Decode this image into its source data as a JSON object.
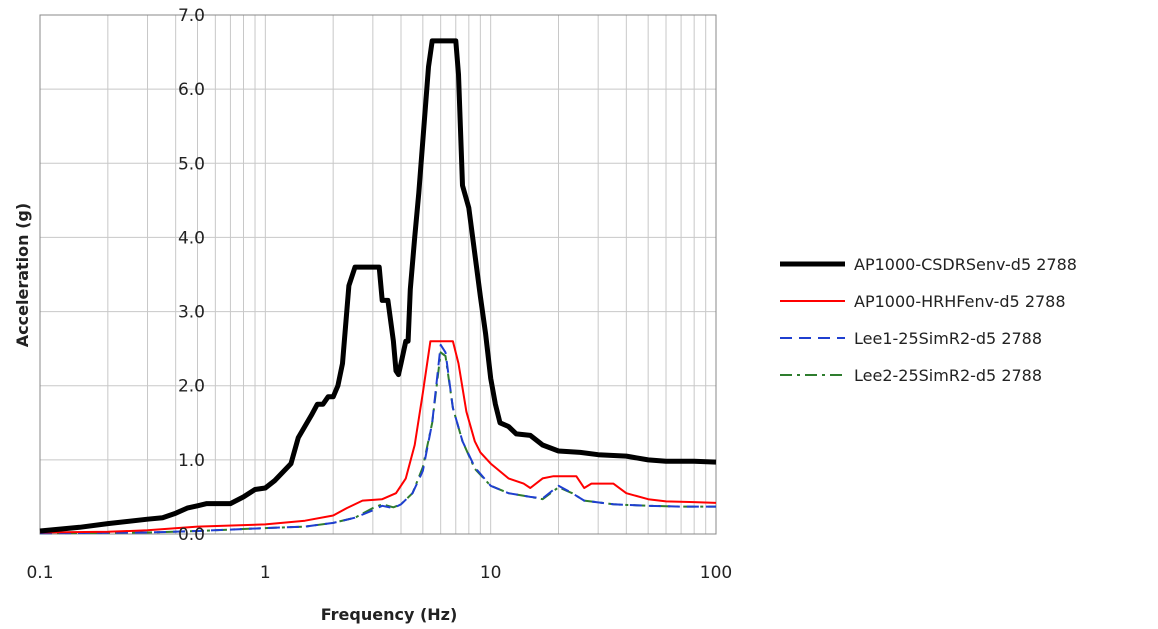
{
  "chart_data": {
    "type": "line",
    "title": "",
    "xlabel": "Frequency (Hz)",
    "ylabel": "Acceleration (g)",
    "xscale": "log",
    "xlim": [
      0.1,
      100
    ],
    "ylim": [
      0,
      7
    ],
    "x_ticks": [
      {
        "value": 0.1,
        "label": "0.1"
      },
      {
        "value": 1,
        "label": "1"
      },
      {
        "value": 10,
        "label": "10"
      },
      {
        "value": 100,
        "label": "100"
      }
    ],
    "y_ticks": [
      {
        "value": 0,
        "label": "0.0"
      },
      {
        "value": 1,
        "label": "1.0"
      },
      {
        "value": 2,
        "label": "2.0"
      },
      {
        "value": 3,
        "label": "3.0"
      },
      {
        "value": 4,
        "label": "4.0"
      },
      {
        "value": 5,
        "label": "5.0"
      },
      {
        "value": 6,
        "label": "6.0"
      },
      {
        "value": 7,
        "label": "7.0"
      }
    ],
    "grid": true,
    "legend_position": "right",
    "series": [
      {
        "name": "AP1000-CSDRSenv-d5 2788",
        "color": "#000000",
        "style": "solid-thick",
        "points": [
          [
            0.1,
            0.04
          ],
          [
            0.15,
            0.09
          ],
          [
            0.2,
            0.14
          ],
          [
            0.3,
            0.2
          ],
          [
            0.35,
            0.22
          ],
          [
            0.4,
            0.28
          ],
          [
            0.45,
            0.35
          ],
          [
            0.5,
            0.38
          ],
          [
            0.55,
            0.41
          ],
          [
            0.6,
            0.41
          ],
          [
            0.7,
            0.41
          ],
          [
            0.8,
            0.5
          ],
          [
            0.9,
            0.6
          ],
          [
            1.0,
            0.62
          ],
          [
            1.1,
            0.72
          ],
          [
            1.3,
            0.95
          ],
          [
            1.4,
            1.3
          ],
          [
            1.6,
            1.6
          ],
          [
            1.7,
            1.75
          ],
          [
            1.8,
            1.75
          ],
          [
            1.9,
            1.85
          ],
          [
            2.0,
            1.85
          ],
          [
            2.1,
            2.0
          ],
          [
            2.2,
            2.3
          ],
          [
            2.35,
            3.35
          ],
          [
            2.5,
            3.6
          ],
          [
            3.0,
            3.6
          ],
          [
            3.2,
            3.6
          ],
          [
            3.3,
            3.15
          ],
          [
            3.5,
            3.15
          ],
          [
            3.7,
            2.6
          ],
          [
            3.8,
            2.2
          ],
          [
            3.9,
            2.15
          ],
          [
            4.0,
            2.3
          ],
          [
            4.2,
            2.6
          ],
          [
            4.3,
            2.6
          ],
          [
            4.4,
            3.3
          ],
          [
            4.6,
            4.0
          ],
          [
            4.8,
            4.6
          ],
          [
            5.0,
            5.3
          ],
          [
            5.3,
            6.3
          ],
          [
            5.5,
            6.65
          ],
          [
            7.0,
            6.65
          ],
          [
            7.2,
            6.2
          ],
          [
            7.5,
            4.7
          ],
          [
            8.0,
            4.4
          ],
          [
            9.0,
            3.2
          ],
          [
            9.5,
            2.7
          ],
          [
            10.0,
            2.1
          ],
          [
            10.5,
            1.75
          ],
          [
            11.0,
            1.5
          ],
          [
            12.0,
            1.45
          ],
          [
            13.0,
            1.35
          ],
          [
            15.0,
            1.33
          ],
          [
            17.0,
            1.2
          ],
          [
            20.0,
            1.12
          ],
          [
            25.0,
            1.1
          ],
          [
            30.0,
            1.07
          ],
          [
            40.0,
            1.05
          ],
          [
            50.0,
            1.0
          ],
          [
            60.0,
            0.98
          ],
          [
            80.0,
            0.98
          ],
          [
            100.0,
            0.97
          ]
        ]
      },
      {
        "name": "AP1000-HRHFenv-d5 2788",
        "color": "#ff0000",
        "style": "solid",
        "points": [
          [
            0.1,
            0.02
          ],
          [
            0.2,
            0.03
          ],
          [
            0.3,
            0.05
          ],
          [
            0.5,
            0.1
          ],
          [
            0.8,
            0.12
          ],
          [
            1.0,
            0.13
          ],
          [
            1.5,
            0.18
          ],
          [
            2.0,
            0.25
          ],
          [
            2.3,
            0.35
          ],
          [
            2.7,
            0.45
          ],
          [
            3.3,
            0.47
          ],
          [
            3.8,
            0.55
          ],
          [
            4.2,
            0.75
          ],
          [
            4.6,
            1.2
          ],
          [
            5.0,
            1.9
          ],
          [
            5.4,
            2.6
          ],
          [
            6.8,
            2.6
          ],
          [
            7.2,
            2.3
          ],
          [
            7.8,
            1.65
          ],
          [
            8.5,
            1.25
          ],
          [
            9.0,
            1.1
          ],
          [
            10.0,
            0.95
          ],
          [
            12.0,
            0.75
          ],
          [
            14.0,
            0.68
          ],
          [
            15.0,
            0.62
          ],
          [
            17.0,
            0.75
          ],
          [
            19.0,
            0.78
          ],
          [
            24.0,
            0.78
          ],
          [
            26.0,
            0.62
          ],
          [
            28.0,
            0.68
          ],
          [
            35.0,
            0.68
          ],
          [
            40.0,
            0.55
          ],
          [
            50.0,
            0.47
          ],
          [
            60.0,
            0.44
          ],
          [
            80.0,
            0.43
          ],
          [
            100.0,
            0.42
          ]
        ]
      },
      {
        "name": "Lee1-25SimR2-d5 2788",
        "color": "#1f3fd0",
        "style": "dashed",
        "points": [
          [
            0.1,
            0.01
          ],
          [
            0.3,
            0.02
          ],
          [
            0.5,
            0.04
          ],
          [
            1.0,
            0.08
          ],
          [
            1.5,
            0.1
          ],
          [
            2.0,
            0.15
          ],
          [
            2.5,
            0.22
          ],
          [
            3.0,
            0.32
          ],
          [
            3.3,
            0.38
          ],
          [
            3.7,
            0.35
          ],
          [
            4.0,
            0.4
          ],
          [
            4.5,
            0.55
          ],
          [
            5.0,
            0.85
          ],
          [
            5.5,
            1.5
          ],
          [
            6.0,
            2.55
          ],
          [
            6.3,
            2.45
          ],
          [
            6.8,
            1.7
          ],
          [
            7.5,
            1.25
          ],
          [
            8.5,
            0.9
          ],
          [
            10.0,
            0.65
          ],
          [
            12.0,
            0.55
          ],
          [
            15.0,
            0.5
          ],
          [
            17.0,
            0.48
          ],
          [
            20.0,
            0.65
          ],
          [
            23.0,
            0.55
          ],
          [
            26.0,
            0.45
          ],
          [
            35.0,
            0.4
          ],
          [
            50.0,
            0.38
          ],
          [
            70.0,
            0.37
          ],
          [
            100.0,
            0.37
          ]
        ]
      },
      {
        "name": "Lee2-25SimR2-d5 2788",
        "color": "#2e7d2e",
        "style": "dashdot",
        "points": [
          [
            0.1,
            0.01
          ],
          [
            0.3,
            0.02
          ],
          [
            0.5,
            0.04
          ],
          [
            1.0,
            0.08
          ],
          [
            1.5,
            0.1
          ],
          [
            2.0,
            0.15
          ],
          [
            2.5,
            0.22
          ],
          [
            3.0,
            0.35
          ],
          [
            3.3,
            0.4
          ],
          [
            3.7,
            0.36
          ],
          [
            4.0,
            0.4
          ],
          [
            4.5,
            0.55
          ],
          [
            5.0,
            0.9
          ],
          [
            5.5,
            1.5
          ],
          [
            6.0,
            2.45
          ],
          [
            6.3,
            2.4
          ],
          [
            6.8,
            1.7
          ],
          [
            7.5,
            1.25
          ],
          [
            8.5,
            0.88
          ],
          [
            10.0,
            0.65
          ],
          [
            12.0,
            0.55
          ],
          [
            15.0,
            0.5
          ],
          [
            17.0,
            0.47
          ],
          [
            20.0,
            0.63
          ],
          [
            23.0,
            0.55
          ],
          [
            26.0,
            0.45
          ],
          [
            35.0,
            0.4
          ],
          [
            50.0,
            0.38
          ],
          [
            70.0,
            0.37
          ],
          [
            100.0,
            0.37
          ]
        ]
      }
    ]
  }
}
